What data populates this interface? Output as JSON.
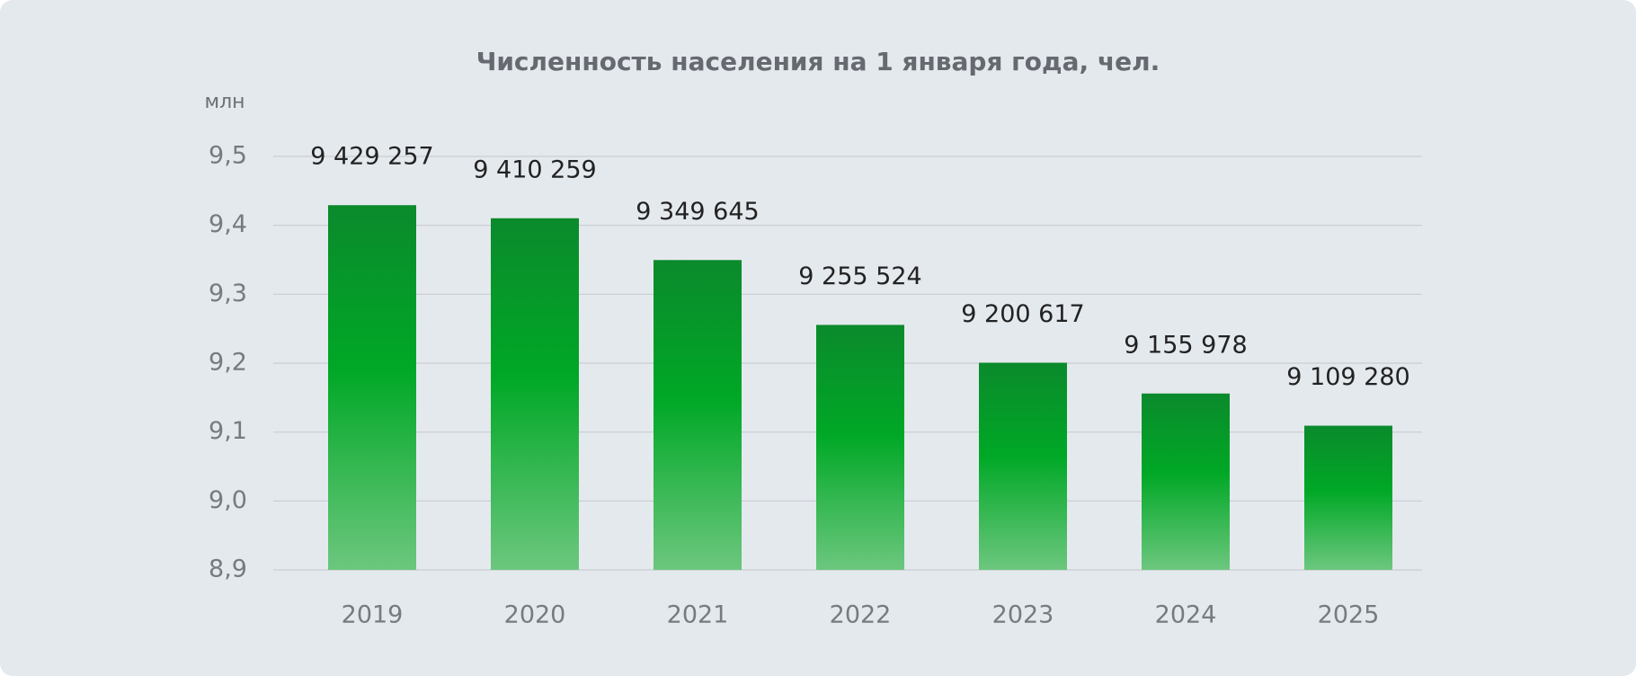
{
  "chart_data": {
    "type": "bar",
    "title": "Численность населения на 1 января года, чел.",
    "ylabel": "млн",
    "categories": [
      "2019",
      "2020",
      "2021",
      "2022",
      "2023",
      "2024",
      "2025"
    ],
    "values": [
      9.429257,
      9.410259,
      9.349645,
      9.255524,
      9.200617,
      9.155978,
      9.10928
    ],
    "value_labels": [
      "9 429 257",
      "9 410 259",
      "9 349 645",
      "9 255 524",
      "9 200 617",
      "9 155 978",
      "9 109 280"
    ],
    "color": "#00a826",
    "ylim": [
      8.9,
      9.5
    ],
    "yticks": [
      {
        "value": 8.9,
        "label": "8,9"
      },
      {
        "value": 9.0,
        "label": "9,0"
      },
      {
        "value": 9.1,
        "label": "9,1"
      },
      {
        "value": 9.2,
        "label": "9,2"
      },
      {
        "value": 9.3,
        "label": "9,3"
      },
      {
        "value": 9.4,
        "label": "9,4"
      },
      {
        "value": 9.5,
        "label": "9,5"
      }
    ],
    "grid": true
  }
}
